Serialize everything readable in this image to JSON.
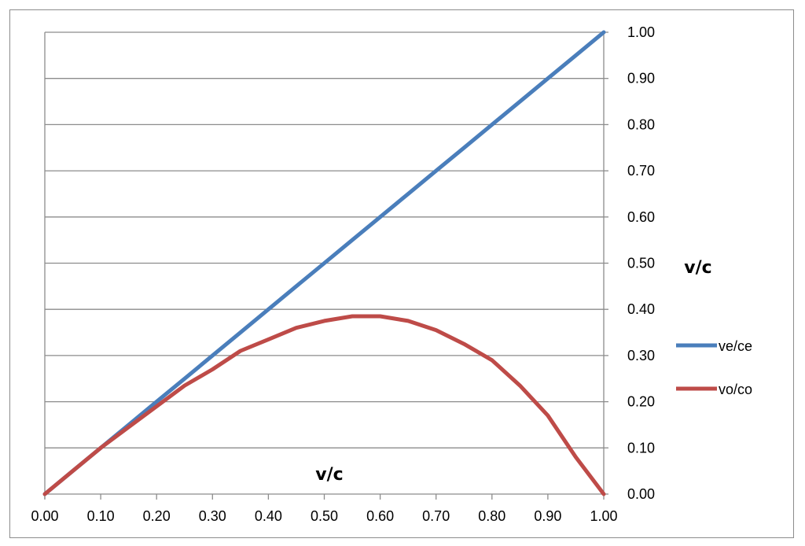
{
  "chart_data": {
    "type": "line",
    "xlabel": "v/c",
    "ylabel": "v/c",
    "xlim": [
      0,
      1
    ],
    "ylim": [
      0,
      1
    ],
    "x_ticks": [
      "0.00",
      "0.10",
      "0.20",
      "0.30",
      "0.40",
      "0.50",
      "0.60",
      "0.70",
      "0.80",
      "0.90",
      "1.00"
    ],
    "y_ticks": [
      "0.00",
      "0.10",
      "0.20",
      "0.30",
      "0.40",
      "0.50",
      "0.60",
      "0.70",
      "0.80",
      "0.90",
      "1.00"
    ],
    "y_axis_side": "right",
    "grid": "horizontal",
    "legend_position": "right",
    "x": [
      0.0,
      0.05,
      0.1,
      0.15,
      0.2,
      0.25,
      0.3,
      0.35,
      0.4,
      0.45,
      0.5,
      0.55,
      0.6,
      0.65,
      0.7,
      0.75,
      0.8,
      0.85,
      0.9,
      0.95,
      1.0
    ],
    "series": [
      {
        "name": "ve/ce",
        "color": "#4a7ebb",
        "values": [
          0.0,
          0.05,
          0.1,
          0.15,
          0.2,
          0.25,
          0.3,
          0.35,
          0.4,
          0.45,
          0.5,
          0.55,
          0.6,
          0.65,
          0.7,
          0.75,
          0.8,
          0.85,
          0.9,
          0.95,
          1.0
        ]
      },
      {
        "name": "vo/co",
        "color": "#be4b48",
        "values": [
          0.0,
          0.05,
          0.1,
          0.145,
          0.19,
          0.235,
          0.27,
          0.31,
          0.335,
          0.36,
          0.375,
          0.385,
          0.385,
          0.375,
          0.355,
          0.325,
          0.29,
          0.235,
          0.17,
          0.08,
          0.0
        ]
      }
    ]
  }
}
